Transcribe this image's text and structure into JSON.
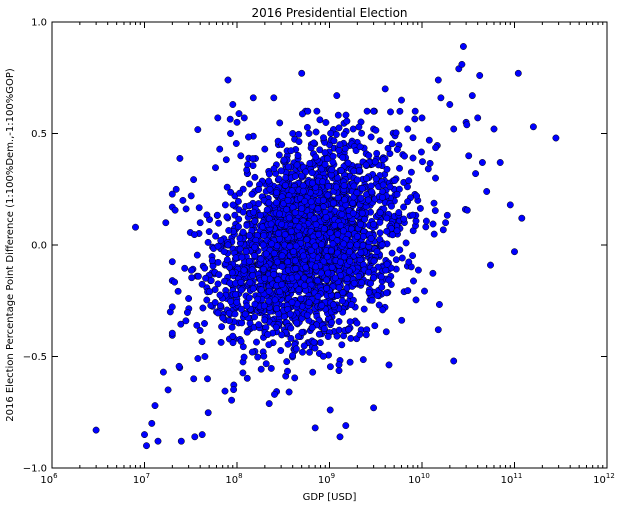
{
  "chart_data": {
    "type": "scatter",
    "title": "2016 Presidential Election",
    "xlabel": "GDP [USD]",
    "ylabel": "2016 Election Percentage Point Difference (1:100%Dem.,-1:100%GOP)",
    "xscale": "log",
    "xlim": [
      1000000,
      1000000000000
    ],
    "ylim": [
      -1.0,
      1.0
    ],
    "x_ticks": [
      {
        "value": 1000000,
        "base": "10",
        "exp": "6"
      },
      {
        "value": 10000000,
        "base": "10",
        "exp": "7"
      },
      {
        "value": 100000000,
        "base": "10",
        "exp": "8"
      },
      {
        "value": 1000000000,
        "base": "10",
        "exp": "9"
      },
      {
        "value": 10000000000,
        "base": "10",
        "exp": "10"
      },
      {
        "value": 100000000000,
        "base": "10",
        "exp": "11"
      },
      {
        "value": 1000000000000,
        "base": "10",
        "exp": "12"
      }
    ],
    "y_ticks": [
      {
        "value": -1.0,
        "label": "−1.0"
      },
      {
        "value": -0.5,
        "label": "−0.5"
      },
      {
        "value": 0.0,
        "label": "0.0"
      },
      {
        "value": 0.5,
        "label": "0.5"
      },
      {
        "value": 1.0,
        "label": "1.0"
      }
    ],
    "grid": false,
    "marker_color": "#0000ff",
    "marker_edge": "#000000",
    "points": [
      [
        3000000,
        -0.83
      ],
      [
        8000000,
        0.08
      ],
      [
        10000000,
        -0.85
      ],
      [
        10500000,
        -0.9
      ],
      [
        12000000,
        -0.8
      ],
      [
        13000000,
        -0.72
      ],
      [
        14000000,
        -0.88
      ],
      [
        16000000,
        -0.57
      ],
      [
        17000000,
        0.1
      ],
      [
        18000000,
        -0.65
      ],
      [
        19000000,
        -0.3
      ],
      [
        20000000,
        0.17
      ],
      [
        22000000,
        0.25
      ],
      [
        24000000,
        -0.55
      ],
      [
        25000000,
        -0.88
      ],
      [
        26000000,
        0.2
      ],
      [
        28000000,
        -0.34
      ],
      [
        30000000,
        -0.24
      ],
      [
        32000000,
        0.22
      ],
      [
        34000000,
        -0.6
      ],
      [
        35000000,
        -0.86
      ],
      [
        37000000,
        -0.14
      ],
      [
        40000000,
        0.1
      ],
      [
        42000000,
        -0.85
      ],
      [
        45000000,
        -0.5
      ],
      [
        48000000,
        -0.6
      ],
      [
        50000000,
        0.06
      ],
      [
        52000000,
        -0.16
      ],
      [
        55000000,
        -0.08
      ],
      [
        58000000,
        -0.2
      ],
      [
        60000000,
        -0.3
      ],
      [
        62000000,
        0.57
      ],
      [
        65000000,
        0.43
      ],
      [
        70000000,
        0.0
      ],
      [
        75000000,
        0.18
      ],
      [
        80000000,
        0.74
      ],
      [
        85000000,
        0.5
      ],
      [
        90000000,
        0.63
      ],
      [
        95000000,
        0.22
      ],
      [
        100000000,
        0.55
      ],
      [
        110000000,
        0.4
      ],
      [
        120000000,
        0.57
      ],
      [
        130000000,
        0.32
      ],
      [
        150000000,
        0.66
      ],
      [
        170000000,
        0.25
      ],
      [
        200000000,
        0.43
      ],
      [
        220000000,
        0.33
      ],
      [
        250000000,
        0.66
      ],
      [
        280000000,
        0.45
      ],
      [
        300000000,
        0.2
      ],
      [
        350000000,
        0.4
      ],
      [
        400000000,
        0.5
      ],
      [
        450000000,
        0.32
      ],
      [
        500000000,
        0.77
      ],
      [
        550000000,
        0.6
      ],
      [
        600000000,
        0.5
      ],
      [
        700000000,
        0.37
      ],
      [
        800000000,
        0.28
      ],
      [
        900000000,
        0.34
      ],
      [
        1000000000,
        0.45
      ],
      [
        1200000000,
        0.67
      ],
      [
        1400000000,
        0.15
      ],
      [
        1600000000,
        0.36
      ],
      [
        1800000000,
        0.1
      ],
      [
        2000000000,
        0.46
      ],
      [
        2400000000,
        0.27
      ],
      [
        2800000000,
        0.36
      ],
      [
        3000000000,
        0.52
      ],
      [
        3500000000,
        0.15
      ],
      [
        4000000000,
        0.7
      ],
      [
        4500000000,
        0.41
      ],
      [
        5000000000,
        0.25
      ],
      [
        6000000000,
        0.65
      ],
      [
        7000000000,
        0.52
      ],
      [
        8000000000,
        0.39
      ],
      [
        9000000000,
        0.2
      ],
      [
        10000000000,
        0.57
      ],
      [
        12000000000,
        0.47
      ],
      [
        14000000000,
        0.3
      ],
      [
        15000000000,
        0.74
      ],
      [
        16000000000,
        0.66
      ],
      [
        18000000000,
        0.1
      ],
      [
        20000000000,
        0.63
      ],
      [
        22000000000,
        0.52
      ],
      [
        25000000000,
        0.79
      ],
      [
        27000000000,
        0.81
      ],
      [
        28000000000,
        0.89
      ],
      [
        30000000000,
        0.55
      ],
      [
        32000000000,
        0.4
      ],
      [
        35000000000,
        0.67
      ],
      [
        38000000000,
        0.32
      ],
      [
        40000000000,
        0.57
      ],
      [
        42000000000,
        0.76
      ],
      [
        45000000000,
        0.37
      ],
      [
        50000000000,
        0.24
      ],
      [
        55000000000,
        -0.09
      ],
      [
        60000000000,
        0.52
      ],
      [
        70000000000,
        0.37
      ],
      [
        90000000000,
        0.18
      ],
      [
        100000000000,
        -0.03
      ],
      [
        110000000000,
        0.77
      ],
      [
        120000000000,
        0.12
      ],
      [
        160000000000,
        0.53
      ],
      [
        280000000000,
        0.48
      ],
      [
        22000000000,
        -0.52
      ],
      [
        15000000000,
        -0.38
      ],
      [
        3000000000,
        -0.73
      ],
      [
        1500000000,
        -0.81
      ],
      [
        1300000000,
        -0.86
      ],
      [
        700000000,
        -0.82
      ]
    ]
  }
}
